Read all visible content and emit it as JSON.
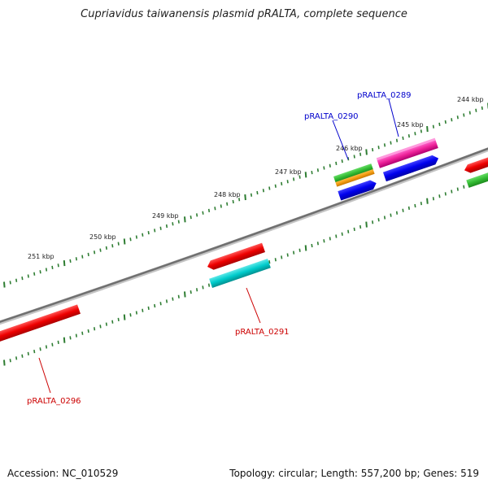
{
  "title": "Cupriavidus taiwanensis plasmid pRALTA, complete sequence",
  "footer": {
    "accession": "Accession: NC_010529",
    "summary": "Topology: circular; Length: 557,200 bp; Genes: 519"
  },
  "colors": {
    "backbone": "#7a7a7a",
    "ticks": "#2e7d32",
    "label_red": "#cc0000",
    "label_blue": "#0000cc"
  },
  "scale_labels": [
    "244 kbp",
    "245 kbp",
    "246 kbp",
    "247 kbp",
    "248 kbp",
    "249 kbp",
    "250 kbp",
    "251 kbp"
  ],
  "genes": [
    {
      "label": "pRALTA_0289",
      "color": "#0000cc"
    },
    {
      "label": "pRALTA_0290",
      "color": "#0000cc"
    },
    {
      "label": "pRALTA_0291",
      "color": "#cc0000"
    },
    {
      "label": "pRALTA_0296",
      "color": "#cc0000"
    }
  ]
}
